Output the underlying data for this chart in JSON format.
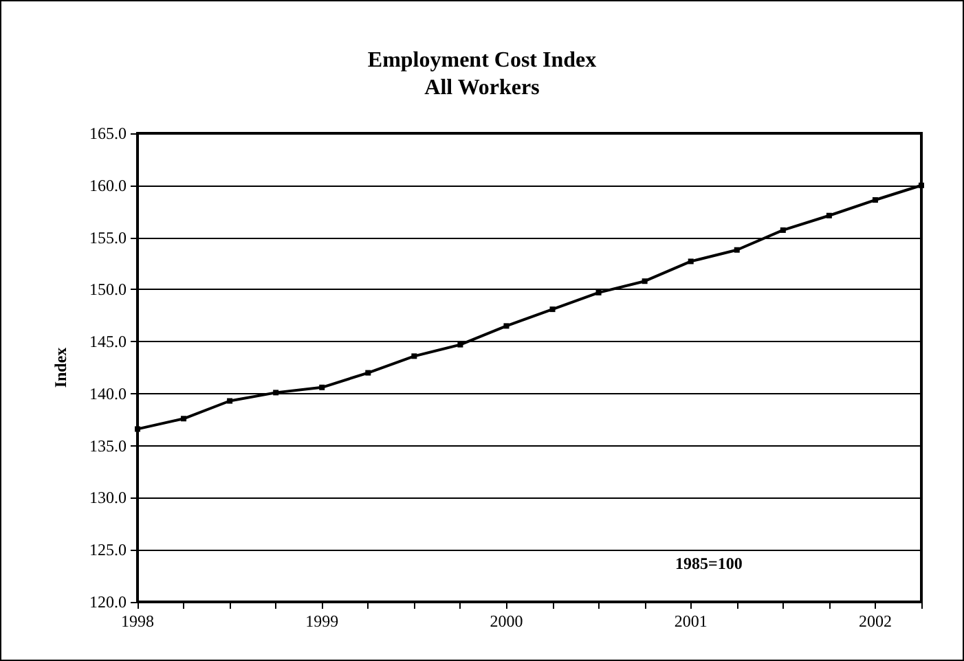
{
  "chart_data": {
    "type": "line",
    "title": "Employment Cost Index\nAll Workers",
    "ylabel": "Index",
    "annotations": [
      "1985=100"
    ],
    "x": [
      1998,
      1998.25,
      1998.5,
      1998.75,
      1999,
      1999.25,
      1999.5,
      1999.75,
      2000,
      2000.25,
      2000.5,
      2000.75,
      2001,
      2001.25,
      2001.5,
      2001.75,
      2002,
      2002.25
    ],
    "series": [
      {
        "color": "#000000",
        "values": [
          136.6,
          137.6,
          139.3,
          140.1,
          140.6,
          142.0,
          143.6,
          144.7,
          146.5,
          148.1,
          149.7,
          150.8,
          152.7,
          153.8,
          155.7,
          157.1,
          158.6,
          160.0
        ]
      }
    ],
    "xlim": [
      1998,
      2002.25
    ],
    "xticks": [
      1998,
      1999,
      2000,
      2001,
      2002
    ],
    "ylim": [
      120,
      165
    ],
    "yticks": [
      {
        "value": 120,
        "label": "120.0"
      },
      {
        "value": 125,
        "label": "125.0"
      },
      {
        "value": 130,
        "label": "130.0"
      },
      {
        "value": 135,
        "label": "135.0"
      },
      {
        "value": 140,
        "label": "140.0"
      },
      {
        "value": 145,
        "label": "145.0"
      },
      {
        "value": 150,
        "label": "150.0"
      },
      {
        "value": 155,
        "label": "155.0"
      },
      {
        "value": 160,
        "label": "160.0"
      },
      {
        "value": 165,
        "label": "165.0"
      }
    ],
    "grid": "y",
    "marker": "square",
    "line_style": "solid"
  }
}
